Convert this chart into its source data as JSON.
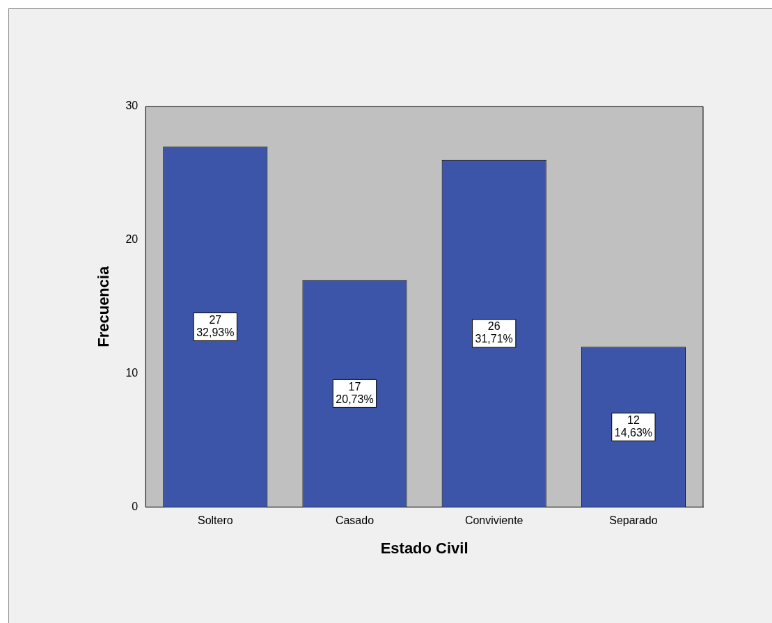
{
  "chart_data": {
    "type": "bar",
    "xlabel": "Estado Civil",
    "ylabel": "Frecuencia",
    "categories": [
      "Soltero",
      "Casado",
      "Conviviente",
      "Separado"
    ],
    "values": [
      27,
      17,
      26,
      12
    ],
    "color": "#3d55a8",
    "value_labels": [
      "27\n32,93%",
      "17\n20,73%",
      "26\n31,71%",
      "12\n14,63%"
    ],
    "ylim": [
      0,
      30
    ],
    "yticks": [
      0,
      10,
      20,
      30
    ],
    "grid": false,
    "legend": false
  }
}
